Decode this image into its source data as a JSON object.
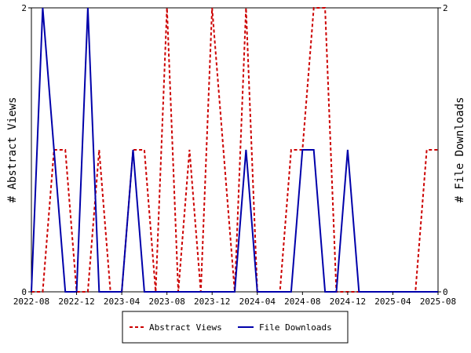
{
  "chart_data": {
    "type": "line",
    "x_ticks": [
      "2022-08",
      "2022-12",
      "2023-04",
      "2023-08",
      "2023-12",
      "2024-04",
      "2024-08",
      "2024-12",
      "2025-04",
      "2025-08"
    ],
    "x": [
      "2022-08",
      "2022-09",
      "2022-10",
      "2022-11",
      "2022-12",
      "2023-01",
      "2023-02",
      "2023-03",
      "2023-04",
      "2023-05",
      "2023-06",
      "2023-07",
      "2023-08",
      "2023-09",
      "2023-10",
      "2023-11",
      "2023-12",
      "2024-01",
      "2024-02",
      "2024-03",
      "2024-04",
      "2024-05",
      "2024-06",
      "2024-07",
      "2024-08",
      "2024-09",
      "2024-10",
      "2024-11",
      "2024-12",
      "2025-01",
      "2025-02",
      "2025-03",
      "2025-04",
      "2025-05",
      "2025-06",
      "2025-07",
      "2025-08"
    ],
    "y_left": {
      "label": "# Abstract Views",
      "range": [
        0,
        2
      ],
      "ticks": [
        "0",
        "2"
      ]
    },
    "y_right": {
      "label": "# File Downloads",
      "range": [
        0,
        2
      ],
      "ticks": [
        "0",
        "2"
      ]
    },
    "series": [
      {
        "name": "Abstract Views",
        "color": "#cc0000",
        "dash": "dashed",
        "axis": "left",
        "values": [
          0,
          0,
          1,
          1,
          0,
          0,
          1,
          0,
          0,
          1,
          1,
          0,
          2,
          0,
          1,
          0,
          2,
          1,
          0,
          2,
          0,
          0,
          0,
          1,
          1,
          2,
          2,
          0,
          0,
          0,
          0,
          0,
          0,
          0,
          0,
          1,
          1
        ]
      },
      {
        "name": "File Downloads",
        "color": "#0000aa",
        "dash": "solid",
        "axis": "right",
        "values": [
          0,
          2,
          1,
          0,
          0,
          2,
          0,
          0,
          0,
          1,
          0,
          0,
          0,
          0,
          0,
          0,
          0,
          0,
          0,
          1,
          0,
          0,
          0,
          0,
          1,
          1,
          0,
          0,
          1,
          0,
          0,
          0,
          0,
          0,
          0,
          0,
          0
        ]
      }
    ],
    "grid": false,
    "legend_position": "bottom-center"
  }
}
